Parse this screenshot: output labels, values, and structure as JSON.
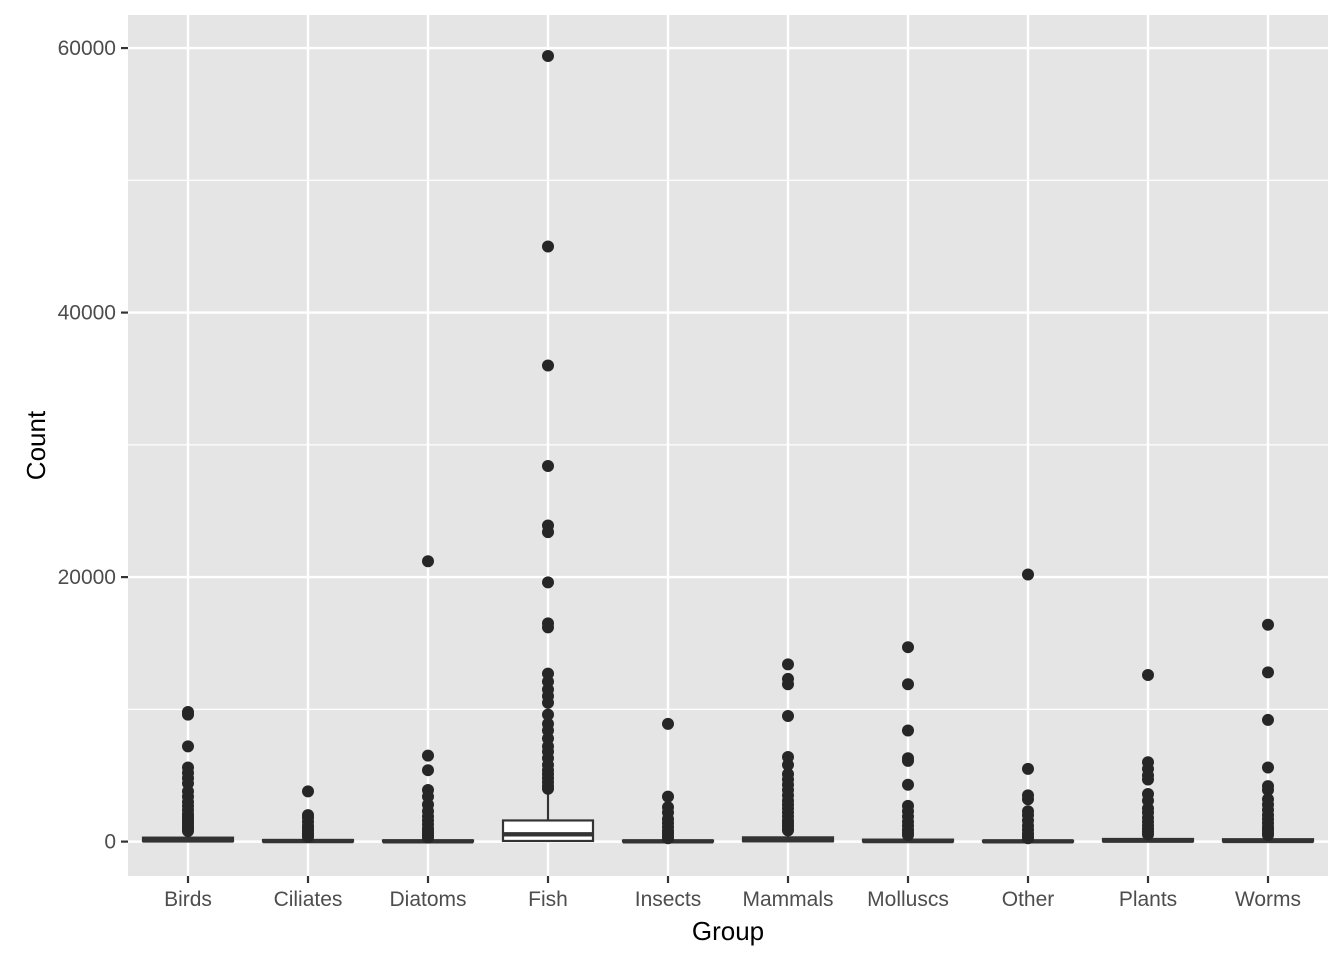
{
  "chart_data": {
    "type": "boxplot",
    "title": "",
    "xlabel": "Group",
    "ylabel": "Count",
    "ylim": [
      -2600,
      62500
    ],
    "yticks": [
      0,
      20000,
      40000,
      60000
    ],
    "grid": true,
    "legend": "none",
    "colors": {
      "panel_bg": "#e5e5e5",
      "grid_major": "#ffffff",
      "box_fill": "#ffffff",
      "box_line": "#333333",
      "outlier": "#262626",
      "tick_text": "#4d4d4d",
      "axis_title": "#000000"
    },
    "categories": [
      "Birds",
      "Ciliates",
      "Diatoms",
      "Fish",
      "Insects",
      "Mammals",
      "Molluscs",
      "Other",
      "Plants",
      "Worms"
    ],
    "boxes": [
      {
        "category": "Birds",
        "lower_whisker": 0,
        "q1": 30,
        "median": 90,
        "q3": 300,
        "upper_whisker": 700,
        "outliers": [
          9800,
          9600,
          7200,
          5600,
          5200,
          4800,
          4400,
          3800,
          3400,
          3000,
          2700,
          2400,
          2100,
          1900,
          1700,
          1500,
          1300,
          1100,
          950,
          800
        ]
      },
      {
        "category": "Ciliates",
        "lower_whisker": 0,
        "q1": 10,
        "median": 40,
        "q3": 120,
        "upper_whisker": 280,
        "outliers": [
          3800,
          2000,
          1800,
          1500,
          1200,
          1000,
          800,
          600,
          450,
          350
        ]
      },
      {
        "category": "Diatoms",
        "lower_whisker": 0,
        "q1": 5,
        "median": 20,
        "q3": 90,
        "upper_whisker": 200,
        "outliers": [
          21200,
          6500,
          5400,
          3900,
          3400,
          2800,
          2300,
          1900,
          1600,
          1300,
          1000,
          800,
          600,
          450,
          300
        ]
      },
      {
        "category": "Fish",
        "lower_whisker": 0,
        "q1": 50,
        "median": 550,
        "q3": 1600,
        "upper_whisker": 3700,
        "outliers": [
          59400,
          45000,
          36000,
          28400,
          23900,
          23400,
          19600,
          16500,
          16200,
          12700,
          12100,
          11500,
          11000,
          10500,
          9600,
          8900,
          8400,
          7800,
          7200,
          6800,
          6300,
          5800,
          5400,
          5100,
          4800,
          4500,
          4200,
          4000
        ]
      },
      {
        "category": "Insects",
        "lower_whisker": 0,
        "q1": 5,
        "median": 20,
        "q3": 80,
        "upper_whisker": 180,
        "outliers": [
          8900,
          3400,
          2600,
          2200,
          1700,
          1400,
          1100,
          800,
          600,
          400,
          250
        ]
      },
      {
        "category": "Mammals",
        "lower_whisker": 0,
        "q1": 30,
        "median": 100,
        "q3": 320,
        "upper_whisker": 750,
        "outliers": [
          13400,
          12300,
          11900,
          9500,
          6400,
          5800,
          5100,
          4700,
          4300,
          3900,
          3500,
          3100,
          2800,
          2500,
          2200,
          1900,
          1600,
          1400,
          1200,
          1000,
          850
        ]
      },
      {
        "category": "Molluscs",
        "lower_whisker": 0,
        "q1": 10,
        "median": 40,
        "q3": 150,
        "upper_whisker": 350,
        "outliers": [
          14700,
          11900,
          8400,
          6300,
          6100,
          4300,
          2700,
          2300,
          1900,
          1500,
          1200,
          900,
          700,
          500
        ]
      },
      {
        "category": "Other",
        "lower_whisker": 0,
        "q1": 5,
        "median": 20,
        "q3": 70,
        "upper_whisker": 160,
        "outliers": [
          20200,
          5500,
          3500,
          3200,
          2300,
          2000,
          1600,
          1200,
          900,
          600,
          400,
          250
        ]
      },
      {
        "category": "Plants",
        "lower_whisker": 0,
        "q1": 20,
        "median": 70,
        "q3": 200,
        "upper_whisker": 450,
        "outliers": [
          12600,
          6000,
          5500,
          5000,
          4700,
          3600,
          3100,
          2500,
          2200,
          1800,
          1500,
          1200,
          950,
          750,
          550
        ]
      },
      {
        "category": "Worms",
        "lower_whisker": 0,
        "q1": 15,
        "median": 50,
        "q3": 180,
        "upper_whisker": 400,
        "outliers": [
          16400,
          12800,
          9200,
          5600,
          4200,
          3900,
          3200,
          2800,
          2400,
          2000,
          1700,
          1400,
          1100,
          900,
          700,
          500
        ]
      }
    ]
  }
}
